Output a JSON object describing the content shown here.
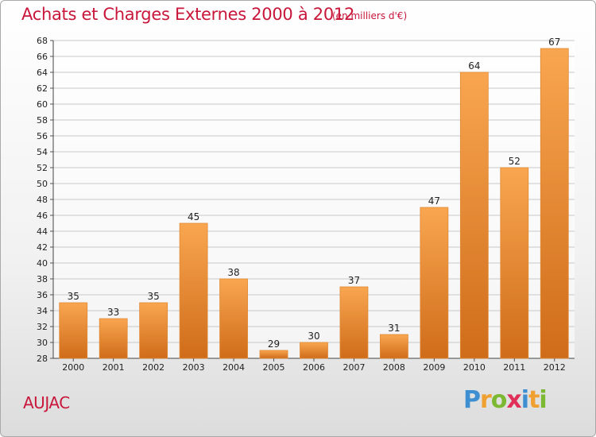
{
  "title": "Achats et Charges Externes 2000 à 2012",
  "subtitle": "(en milliers d'€)",
  "commune": "AUJAC",
  "logo": {
    "text": "Proxiti",
    "letters": [
      {
        "ch": "P",
        "color": "#3d8fd1"
      },
      {
        "ch": "r",
        "color": "#f0a030"
      },
      {
        "ch": "o",
        "color": "#7cb832"
      },
      {
        "ch": "x",
        "color": "#e0305a"
      },
      {
        "ch": "i",
        "color": "#3d8fd1"
      },
      {
        "ch": "t",
        "color": "#f0a030"
      },
      {
        "ch": "i",
        "color": "#7cb832"
      }
    ]
  },
  "colors": {
    "title": "#c8173a",
    "bar_light": "#f9a650",
    "bar_dark": "#cf6c1a",
    "grid": "#c8c8c8"
  },
  "chart_data": {
    "type": "bar",
    "title": "Achats et Charges Externes 2000 à 2012",
    "subtitle": "(en milliers d'€)",
    "xlabel": "",
    "ylabel": "",
    "categories": [
      "2000",
      "2001",
      "2002",
      "2003",
      "2004",
      "2005",
      "2006",
      "2007",
      "2008",
      "2009",
      "2010",
      "2011",
      "2012"
    ],
    "values": [
      35,
      33,
      35,
      45,
      38,
      29,
      30,
      37,
      31,
      47,
      64,
      52,
      67
    ],
    "ylim": [
      28,
      68
    ],
    "yticks": [
      28,
      30,
      32,
      34,
      36,
      38,
      40,
      42,
      44,
      46,
      48,
      50,
      52,
      54,
      56,
      58,
      60,
      62,
      64,
      66,
      68
    ],
    "grid": true,
    "legend": "none"
  }
}
